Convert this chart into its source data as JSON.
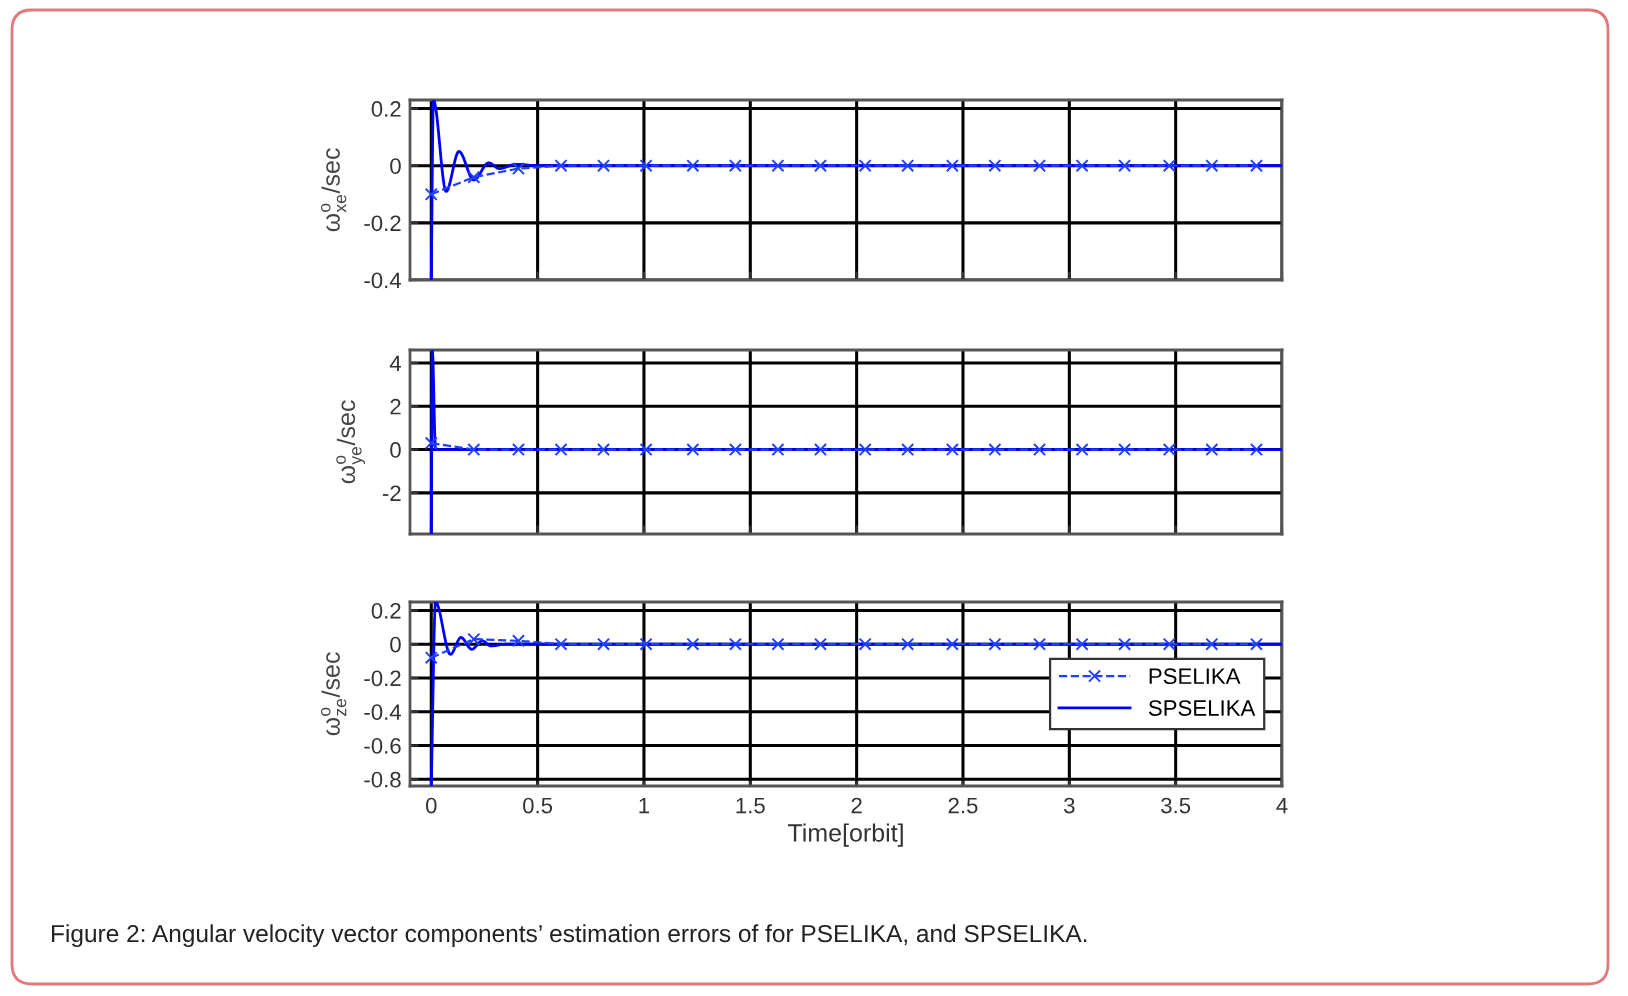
{
  "chart_data": [
    {
      "type": "line",
      "ylabel": "ω$^{o}$$_{xe}$/sec",
      "xlim": [
        -0.1,
        4
      ],
      "xticks": [
        0,
        0.5,
        1,
        1.5,
        2,
        2.5,
        3,
        3.5,
        4
      ],
      "ylim": [
        -0.4,
        0.23
      ],
      "yticks": [
        -0.4,
        -0.2,
        0,
        0.2
      ],
      "grid": true,
      "tick_labels": "y",
      "series": [
        {
          "color": "#2040ff",
          "marker": "cross",
          "line_style": "dashed",
          "x": [
            0,
            0.2,
            0.41,
            0.61,
            0.81,
            1.01,
            1.23,
            1.43,
            1.63,
            1.83,
            2.04,
            2.24,
            2.45,
            2.65,
            2.86,
            3.06,
            3.26,
            3.47,
            3.67,
            3.88
          ],
          "values": [
            -0.1,
            -0.04,
            -0.01,
            0,
            0,
            0,
            0,
            0,
            0,
            0,
            0,
            0,
            0,
            0,
            0,
            0,
            0,
            0,
            0,
            0
          ]
        },
        {
          "color": "#0000ff",
          "marker": "none",
          "line_style": "solid",
          "x": [
            0,
            0.01,
            0.07,
            0.13,
            0.2,
            0.27,
            0.32,
            0.4,
            0.5,
            4
          ],
          "values": [
            -0.4,
            0.23,
            -0.09,
            0.05,
            -0.05,
            0.01,
            -0.01,
            0.005,
            0,
            0
          ]
        }
      ]
    },
    {
      "type": "line",
      "ylabel": "ω$^{o}$$_{ye}$/sec",
      "xlim": [
        -0.1,
        4
      ],
      "xticks": [
        0,
        0.5,
        1,
        1.5,
        2,
        2.5,
        3,
        3.5,
        4
      ],
      "ylim": [
        -3.9,
        4.6
      ],
      "yticks": [
        -2,
        0,
        2,
        4
      ],
      "grid": true,
      "tick_labels": "y",
      "series": [
        {
          "color": "#2040ff",
          "marker": "cross",
          "line_style": "dashed",
          "x": [
            0,
            0.2,
            0.41,
            0.61,
            0.81,
            1.01,
            1.23,
            1.43,
            1.63,
            1.83,
            2.04,
            2.24,
            2.45,
            2.65,
            2.86,
            3.06,
            3.26,
            3.47,
            3.67,
            3.88
          ],
          "values": [
            0.3,
            0,
            0,
            0,
            0,
            0,
            0,
            0,
            0,
            0,
            0,
            0,
            0,
            0,
            0,
            0,
            0,
            0,
            0,
            0
          ]
        },
        {
          "color": "#0000ff",
          "marker": "none",
          "line_style": "solid",
          "x": [
            0,
            0.005,
            0.02,
            4
          ],
          "values": [
            -3.9,
            4.6,
            0,
            0
          ]
        }
      ]
    },
    {
      "type": "line",
      "ylabel": "ω$^{o}$$_{ze}$/sec",
      "xlabel": "Time[orbit]",
      "xlim": [
        -0.1,
        4
      ],
      "xticks": [
        0,
        0.5,
        1,
        1.5,
        2,
        2.5,
        3,
        3.5,
        4
      ],
      "ylim": [
        -0.84,
        0.25
      ],
      "yticks": [
        -0.8,
        -0.6,
        -0.4,
        -0.2,
        0,
        0.2
      ],
      "grid": true,
      "legend": "center right",
      "annotations": [
        "Figure 2: Angular velocity vector components’ estimation errors of for PSELIKA, and SPSELIKA."
      ],
      "series": [
        {
          "name": "PSELIKA",
          "color": "#2040ff",
          "marker": "cross",
          "line_style": "dashed",
          "x": [
            0,
            0.2,
            0.41,
            0.61,
            0.81,
            1.01,
            1.23,
            1.43,
            1.63,
            1.83,
            2.04,
            2.24,
            2.45,
            2.65,
            2.86,
            3.06,
            3.26,
            3.47,
            3.67,
            3.88
          ],
          "values": [
            -0.08,
            0.03,
            0.02,
            0,
            0,
            0,
            0,
            0,
            0,
            0,
            0,
            0,
            0,
            0,
            0,
            0,
            0,
            0,
            0,
            0
          ]
        },
        {
          "name": "SPSELIKA",
          "color": "#0000ff",
          "marker": "none",
          "line_style": "solid",
          "x": [
            0,
            0.02,
            0.09,
            0.14,
            0.19,
            0.24,
            0.28,
            0.35,
            4
          ],
          "values": [
            -0.84,
            0.25,
            -0.06,
            0.04,
            -0.03,
            0.02,
            -0.01,
            0,
            0
          ]
        }
      ]
    }
  ]
}
